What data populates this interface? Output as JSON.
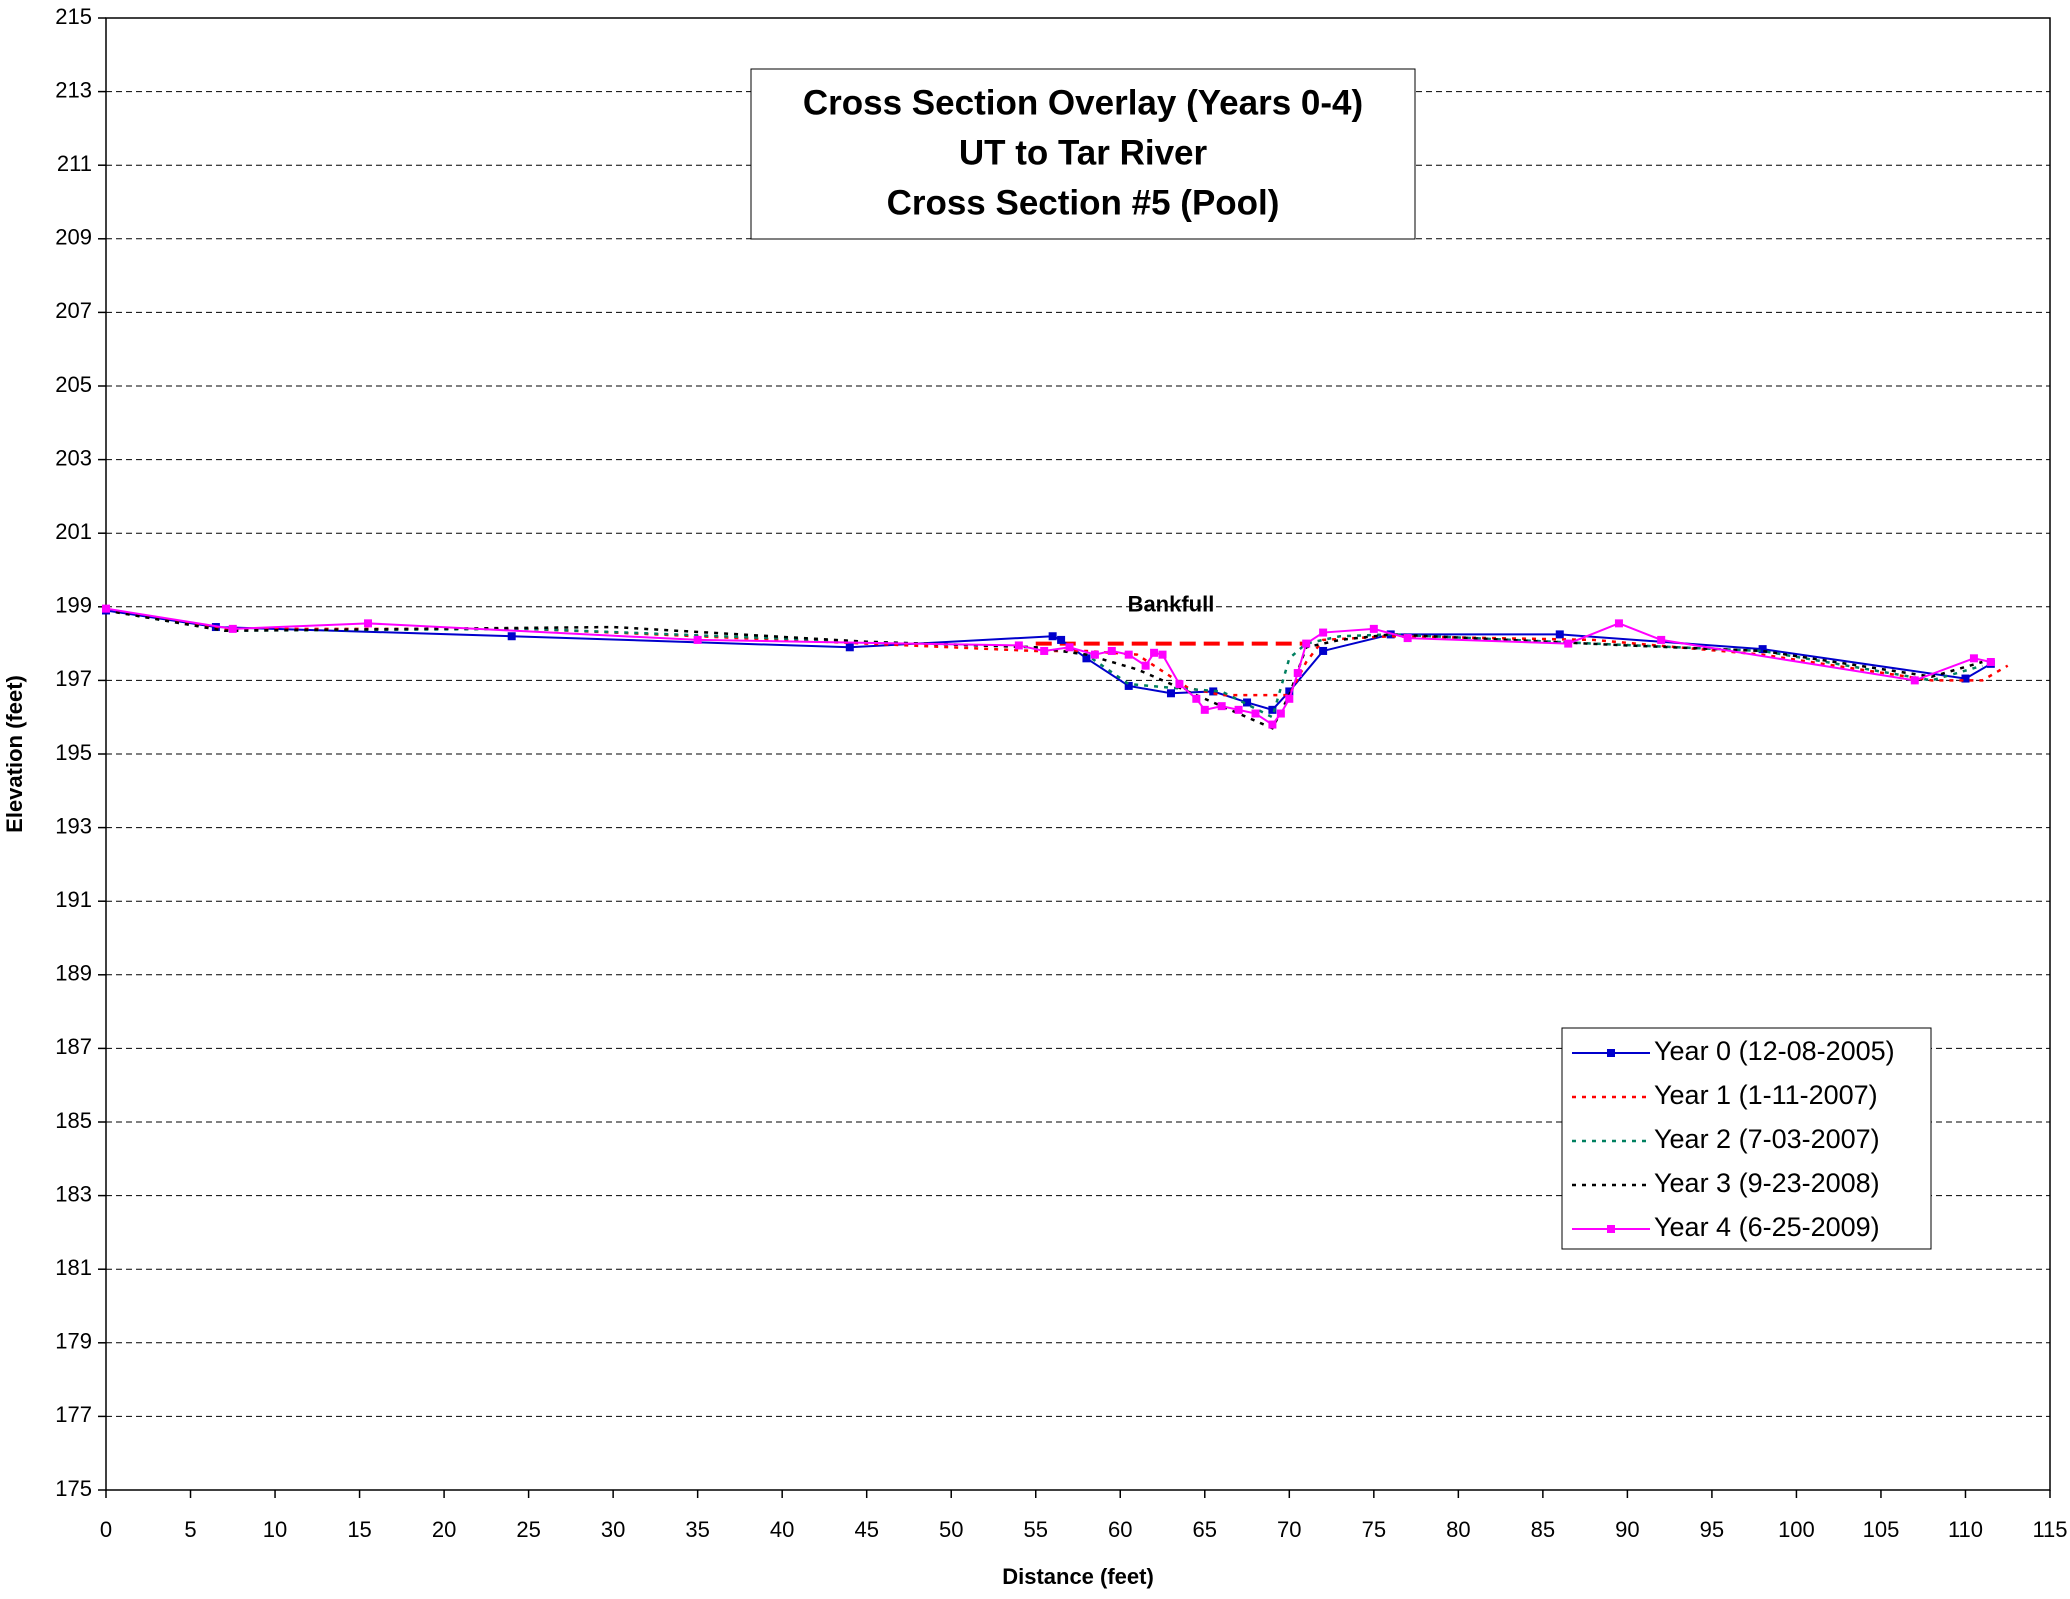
{
  "chart_data": {
    "type": "line",
    "title": [
      "Cross Section Overlay (Years 0-4)",
      "UT to Tar River",
      "Cross Section #5 (Pool)"
    ],
    "xlabel": "Distance (feet)",
    "ylabel": "Elevation (feet)",
    "xlim": [
      0,
      115
    ],
    "xticks": [
      0,
      5,
      10,
      15,
      20,
      25,
      30,
      35,
      40,
      45,
      50,
      55,
      60,
      65,
      70,
      75,
      80,
      85,
      90,
      95,
      100,
      105,
      110,
      115
    ],
    "ylim": [
      175,
      215
    ],
    "yticks": [
      175,
      177,
      179,
      181,
      183,
      185,
      187,
      189,
      191,
      193,
      195,
      197,
      199,
      201,
      203,
      205,
      207,
      209,
      211,
      213,
      215
    ],
    "grid": true,
    "legend": "lower right",
    "series": [
      {
        "name": "Year 0 (12-08-2005)",
        "color": "#0000cc",
        "style": "solid",
        "marker": true,
        "x": [
          0,
          6.5,
          24,
          44,
          56,
          56.5,
          58,
          60.5,
          63,
          65.5,
          67.5,
          69,
          70,
          72,
          76,
          86,
          98,
          110,
          111.5
        ],
        "y": [
          198.9,
          198.45,
          198.2,
          197.9,
          198.2,
          198.1,
          197.6,
          196.85,
          196.65,
          196.7,
          196.4,
          196.2,
          196.7,
          197.8,
          198.25,
          198.25,
          197.85,
          197.05,
          197.45
        ]
      },
      {
        "name": "Year 1 (1-11-2007)",
        "color": "#ff0000",
        "style": "dotted",
        "marker": false,
        "x": [
          0,
          7,
          25,
          45,
          55,
          58,
          61,
          64,
          66,
          70,
          71,
          72,
          76,
          88,
          98,
          108,
          111,
          112.5
        ],
        "y": [
          198.9,
          198.4,
          198.4,
          198.0,
          197.8,
          197.8,
          197.7,
          196.8,
          196.6,
          196.6,
          197.5,
          198.1,
          198.2,
          198.1,
          197.7,
          197.0,
          197.0,
          197.4
        ]
      },
      {
        "name": "Year 2 (7-03-2007)",
        "color": "#008060",
        "style": "dotted",
        "marker": false,
        "x": [
          0,
          7,
          25,
          45,
          55,
          58,
          60.5,
          63,
          66,
          69,
          70,
          71,
          73,
          76,
          88,
          98,
          108,
          111
        ],
        "y": [
          198.9,
          198.35,
          198.4,
          198.05,
          197.9,
          197.7,
          196.9,
          196.8,
          196.7,
          196.0,
          197.6,
          198.0,
          198.2,
          198.25,
          198.0,
          197.8,
          197.0,
          197.4
        ]
      },
      {
        "name": "Year 3 (9-23-2008)",
        "color": "#000000",
        "style": "dotted",
        "marker": false,
        "x": [
          0,
          7,
          30,
          45,
          55,
          58,
          61,
          63,
          66,
          69,
          70,
          71,
          73,
          76,
          90,
          98,
          108,
          111
        ],
        "y": [
          198.9,
          198.35,
          198.45,
          198.05,
          197.9,
          197.7,
          197.3,
          196.9,
          196.3,
          195.7,
          196.6,
          197.9,
          198.1,
          198.25,
          197.95,
          197.8,
          197.1,
          197.5
        ]
      },
      {
        "name": "Year 4 (6-25-2009)",
        "color": "#ff00ff",
        "style": "solid",
        "marker": true,
        "x": [
          0,
          7.5,
          15.5,
          35,
          54,
          55.5,
          57,
          58.5,
          59.5,
          60.5,
          61.5,
          62,
          62.5,
          63.5,
          64.5,
          65,
          66,
          67,
          68,
          69,
          69.5,
          70,
          70.5,
          71,
          72,
          75,
          77,
          86.5,
          89.5,
          92,
          107,
          110.5,
          111.5
        ],
        "y": [
          198.95,
          198.4,
          198.55,
          198.1,
          197.95,
          197.8,
          197.9,
          197.7,
          197.8,
          197.7,
          197.4,
          197.75,
          197.7,
          196.9,
          196.5,
          196.2,
          196.3,
          196.2,
          196.1,
          195.8,
          196.1,
          196.5,
          197.2,
          198.0,
          198.3,
          198.4,
          198.15,
          198.0,
          198.55,
          198.1,
          197.0,
          197.6,
          197.5
        ]
      }
    ],
    "bankfull": {
      "label": "Bankfull",
      "x": [
        55,
        71
      ],
      "y": [
        198,
        198
      ],
      "color": "#ff0000"
    }
  }
}
